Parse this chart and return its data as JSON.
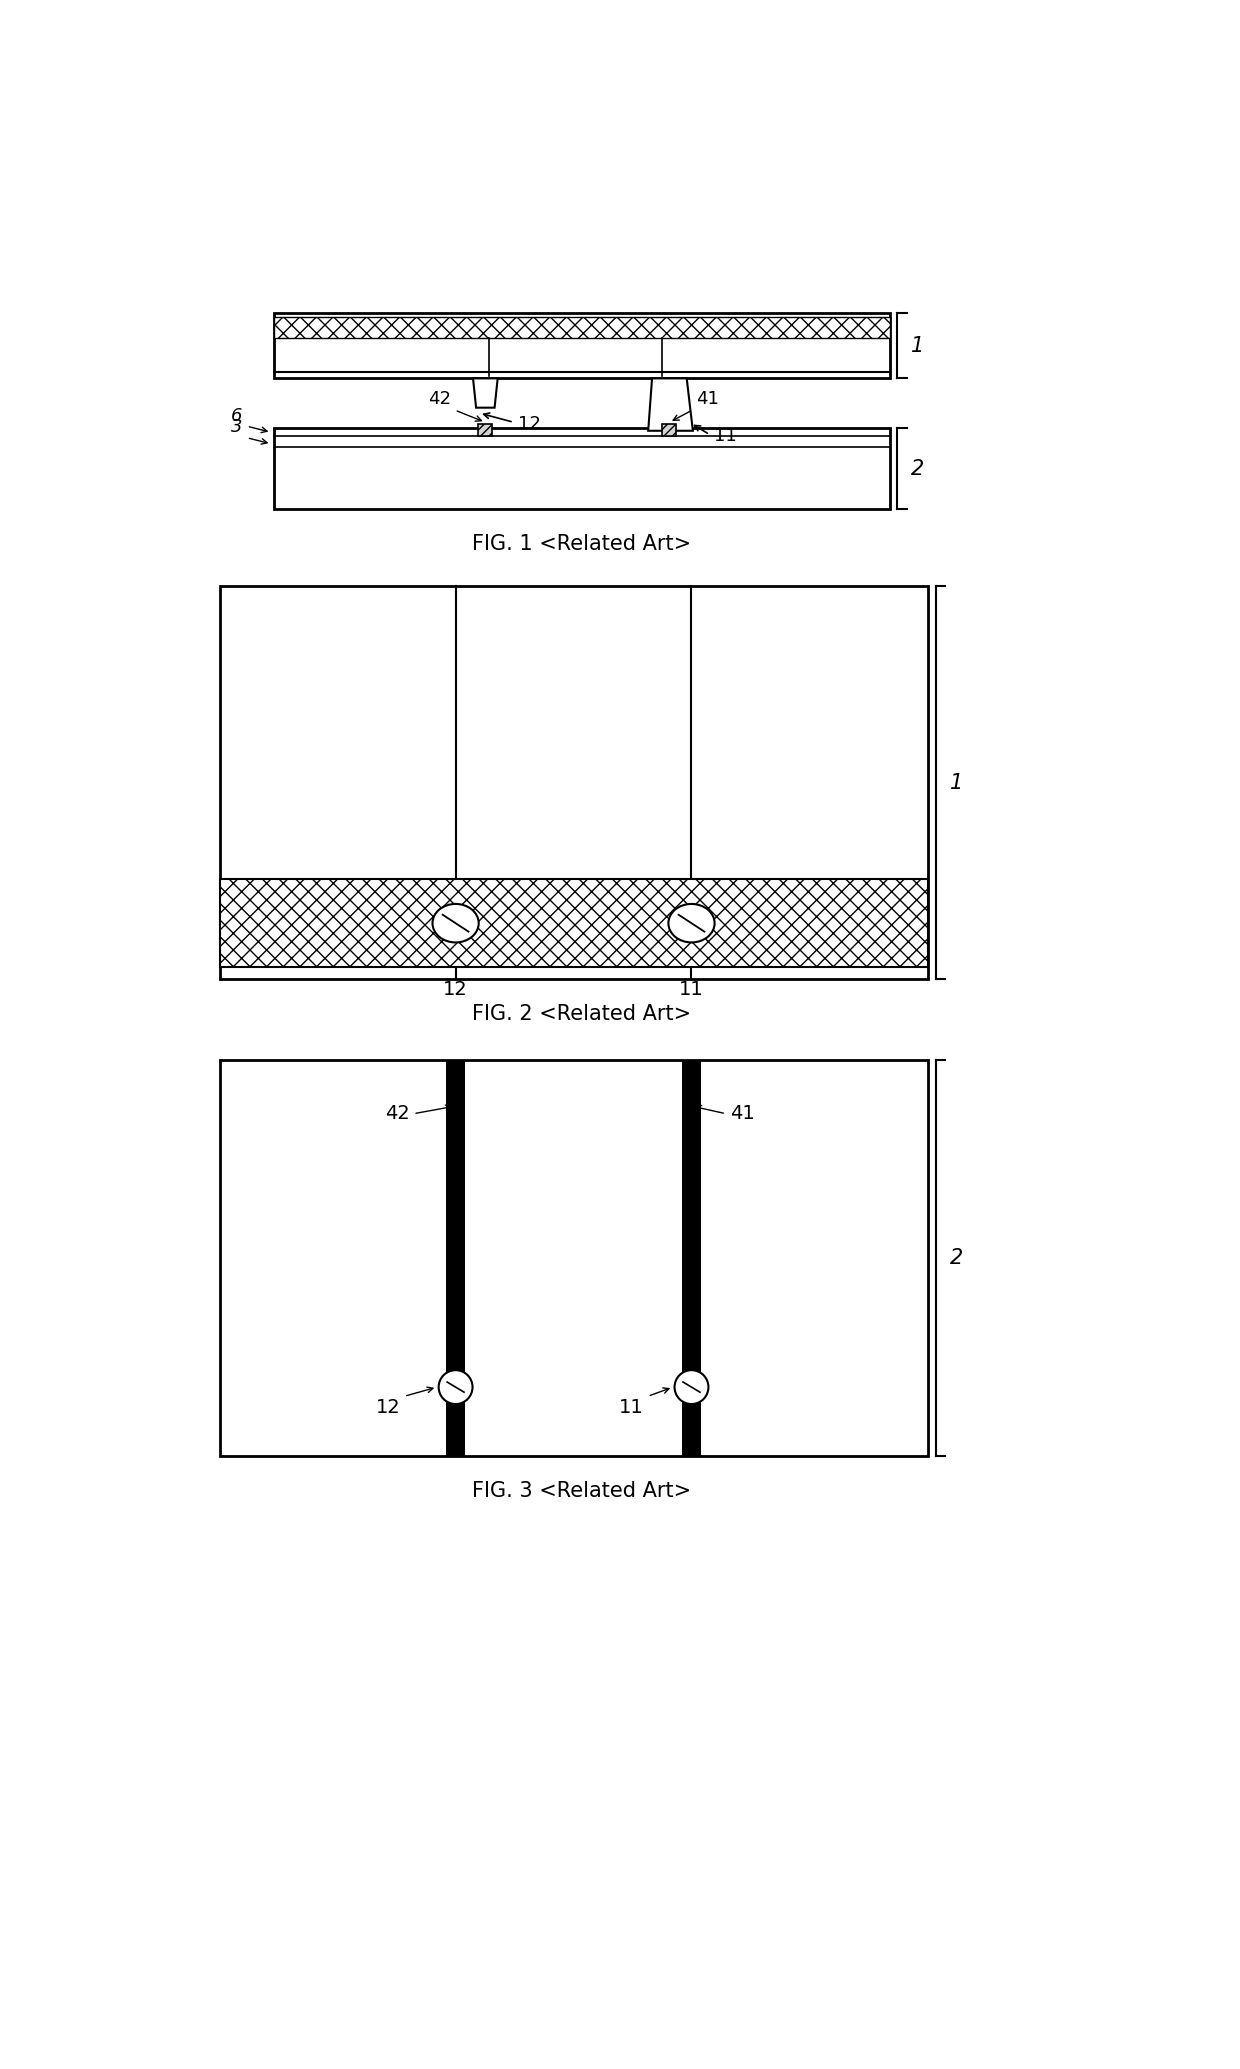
{
  "bg_color": "#ffffff",
  "fig_width": 12.4,
  "fig_height": 20.69,
  "line_color": "#000000",
  "fig1_caption": "FIG. 1 <Related Art>",
  "fig2_caption": "FIG. 2 <Related Art>",
  "fig3_caption": "FIG. 3 <Related Art>"
}
